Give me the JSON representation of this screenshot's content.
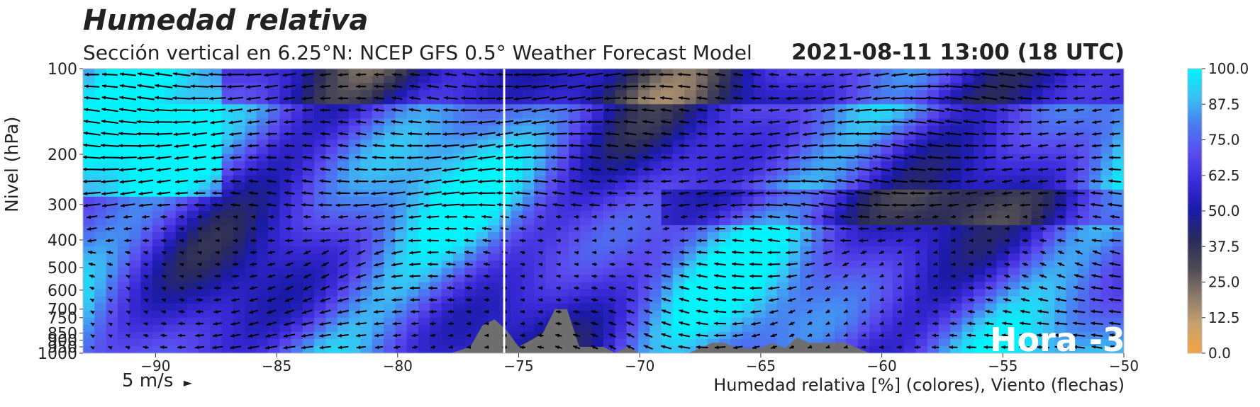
{
  "title": "Humedad relativa",
  "subtitle": "Sección vertical en 6.25°N: NCEP GFS 0.5° Weather Forecast Model",
  "datetime": "2021-08-11 13:00 (18 UTC)",
  "overlay_label": "Hora -3",
  "wind_key": "5 m/s",
  "wind_key_arrow": "►",
  "colors": {
    "colormap": [
      "#f4a442",
      "#c8a26e",
      "#8c7a6a",
      "#4d4a55",
      "#2a2a5a",
      "#1a1aa8",
      "#3a2ad8",
      "#5a4aee",
      "#4a7af0",
      "#3ac0f4",
      "#00f4fc"
    ],
    "terrain": "#6e6e6e",
    "marker_line": "#ffffff",
    "arrow": "#000000"
  },
  "chart_data": {
    "type": "heatmap",
    "title": "Humedad relativa",
    "xlabel": "Humedad relativa [%] (colores), Viento (flechas)",
    "ylabel": "Nivel (hPa)",
    "xlim": [
      -93.0,
      -50.0
    ],
    "ylim": [
      1000,
      100
    ],
    "y_scale": "log",
    "x_ticks": [
      -90,
      -85,
      -80,
      -75,
      -70,
      -65,
      -60,
      -55,
      -50
    ],
    "x_tick_labels": [
      "−90",
      "−85",
      "−80",
      "−75",
      "−70",
      "−65",
      "−60",
      "−55",
      "−50"
    ],
    "y_ticks": [
      100,
      200,
      300,
      400,
      500,
      600,
      700,
      750,
      850,
      900,
      950,
      1000
    ],
    "y_tick_labels": [
      "100",
      "200",
      "300",
      "400",
      "500",
      "600",
      "700",
      "750",
      "850",
      "900",
      "950",
      "1000"
    ],
    "colorbar": {
      "min": 0.0,
      "max": 100.0,
      "ticks": [
        0.0,
        12.5,
        25.0,
        37.5,
        50.0,
        62.5,
        75.0,
        87.5,
        100.0
      ],
      "tick_labels": [
        "0.0",
        "12.5",
        "25.0",
        "37.5",
        "50.0",
        "62.5",
        "75.0",
        "87.5",
        "100.0"
      ]
    },
    "marker_longitude": -75.6,
    "terrain_profile": {
      "lon": [
        -77.8,
        -77.0,
        -76.5,
        -76.0,
        -75.5,
        -75.0,
        -74.5,
        -74.0,
        -73.5,
        -73.0,
        -72.5,
        -72.0,
        -71.5,
        -71.0,
        -70.5,
        -70.0,
        -69.5,
        -69.0,
        -68.5,
        -68.0,
        -67.5,
        -67.0,
        -66.5,
        -66.0,
        -65.5,
        -65.0,
        -64.5,
        -64.0,
        -63.5,
        -63.0,
        -62.5,
        -62.0,
        -61.5,
        -61.0,
        -60.5,
        -60.0
      ],
      "pressure": [
        1000,
        950,
        800,
        760,
        830,
        950,
        900,
        850,
        700,
        700,
        950,
        950,
        950,
        1000,
        950,
        1000,
        1000,
        1000,
        1000,
        1000,
        960,
        920,
        920,
        960,
        960,
        960,
        920,
        960,
        880,
        920,
        920,
        920,
        920,
        960,
        1000,
        1000
      ]
    }
  }
}
